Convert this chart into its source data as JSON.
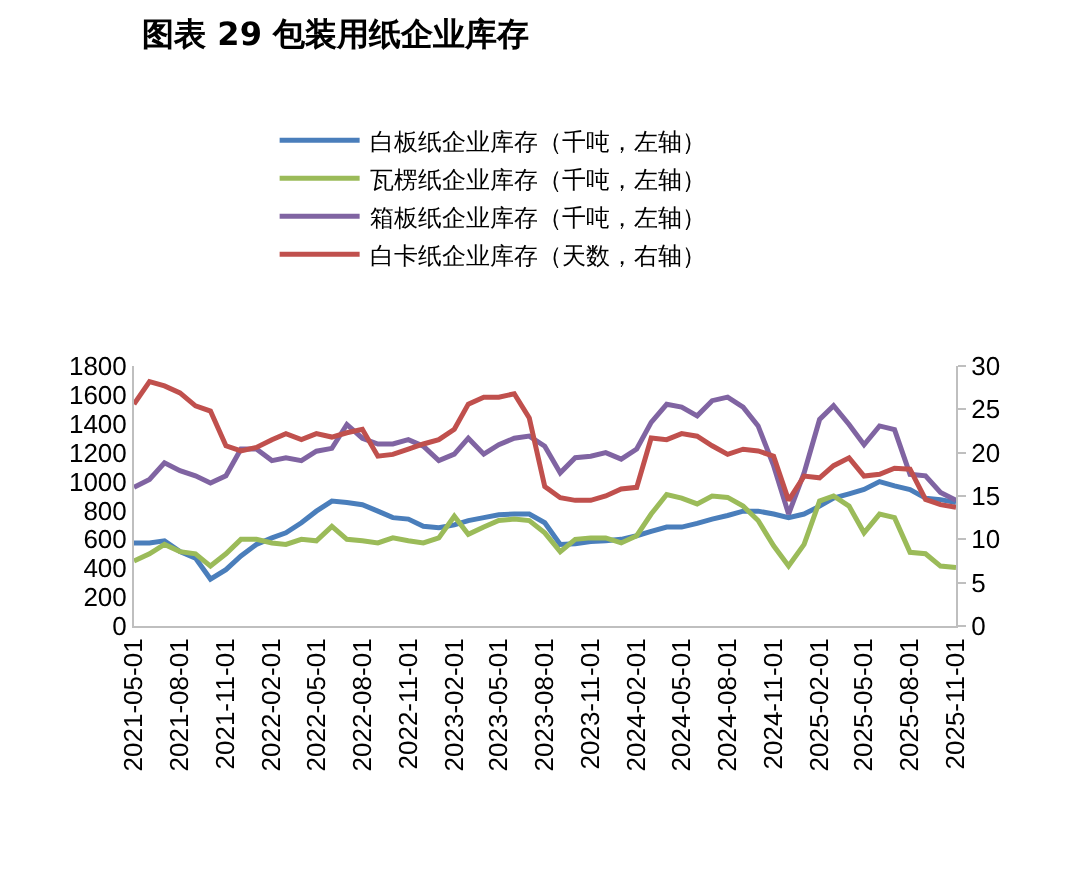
{
  "chart_data": {
    "type": "line",
    "title": "图表 29 包装用纸企业库存",
    "x": [
      "2021-05-01",
      "2021-06-01",
      "2021-07-01",
      "2021-08-01",
      "2021-09-01",
      "2021-10-01",
      "2021-11-01",
      "2021-12-01",
      "2022-01-01",
      "2022-02-01",
      "2022-03-01",
      "2022-04-01",
      "2022-05-01",
      "2022-06-01",
      "2022-07-01",
      "2022-08-01",
      "2022-09-01",
      "2022-10-01",
      "2022-11-01",
      "2022-12-01",
      "2023-01-01",
      "2023-02-01",
      "2023-03-01",
      "2023-04-01",
      "2023-05-01",
      "2023-06-01",
      "2023-07-01",
      "2023-08-01",
      "2023-09-01",
      "2023-10-01",
      "2023-11-01",
      "2023-12-01",
      "2024-01-01",
      "2024-02-01",
      "2024-03-01",
      "2024-04-01",
      "2024-05-01",
      "2024-06-01",
      "2024-07-01",
      "2024-08-01",
      "2024-09-01",
      "2024-10-01",
      "2024-11-01",
      "2024-12-01",
      "2025-01-01",
      "2025-02-01",
      "2025-03-01",
      "2025-04-01",
      "2025-05-01",
      "2025-06-01",
      "2025-07-01",
      "2025-08-01",
      "2025-09-01",
      "2025-10-01",
      "2025-11-01"
    ],
    "series": [
      {
        "name": "白板纸企业库存（千吨，左轴）",
        "color": "#4a7ebb",
        "values": [
          575,
          575,
          590,
          515,
          470,
          325,
          390,
          485,
          565,
          610,
          645,
          715,
          795,
          865,
          855,
          840,
          795,
          750,
          740,
          690,
          680,
          700,
          730,
          750,
          770,
          775,
          775,
          715,
          565,
          570,
          585,
          590,
          600,
          625,
          655,
          685,
          685,
          710,
          740,
          765,
          795,
          795,
          775,
          750,
          775,
          830,
          885,
          915,
          945,
          1000,
          970,
          945,
          885,
          875,
          855
        ]
      },
      {
        "name": "瓦楞纸企业库存（千吨，左轴）",
        "color": "#9bbb59",
        "values": [
          450,
          500,
          565,
          515,
          500,
          415,
          500,
          600,
          600,
          575,
          565,
          600,
          590,
          690,
          600,
          590,
          575,
          610,
          590,
          575,
          610,
          760,
          635,
          685,
          730,
          740,
          730,
          645,
          515,
          600,
          610,
          610,
          575,
          625,
          775,
          910,
          885,
          845,
          900,
          890,
          830,
          730,
          555,
          415,
          565,
          865,
          900,
          830,
          645,
          775,
          750,
          510,
          500,
          415,
          405
        ]
      },
      {
        "name": "箱板纸企业库存（千吨，左轴）",
        "color": "#8064a2",
        "values": [
          960,
          1015,
          1130,
          1075,
          1040,
          990,
          1040,
          1225,
          1225,
          1145,
          1165,
          1145,
          1210,
          1230,
          1395,
          1300,
          1260,
          1260,
          1290,
          1245,
          1145,
          1190,
          1300,
          1190,
          1255,
          1300,
          1315,
          1245,
          1060,
          1165,
          1175,
          1200,
          1155,
          1225,
          1410,
          1535,
          1515,
          1455,
          1560,
          1585,
          1515,
          1385,
          1110,
          775,
          1060,
          1430,
          1525,
          1395,
          1255,
          1385,
          1360,
          1050,
          1040,
          925,
          870
        ]
      },
      {
        "name": "白卡纸企业库存（天数，右轴）",
        "color": "#c0504d",
        "axis": "y2",
        "values": [
          25.6,
          28.2,
          27.7,
          26.9,
          25.4,
          24.8,
          20.8,
          20.2,
          20.6,
          21.5,
          22.2,
          21.5,
          22.2,
          21.8,
          22.3,
          22.7,
          19.6,
          19.8,
          20.4,
          21,
          21.5,
          22.7,
          25.6,
          26.4,
          26.4,
          26.8,
          24,
          16.1,
          14.8,
          14.5,
          14.5,
          15,
          15.8,
          16,
          21.7,
          21.5,
          22.2,
          21.9,
          20.8,
          19.8,
          20.4,
          20.2,
          19.6,
          14.5,
          17.3,
          17.1,
          18.5,
          19.4,
          17.3,
          17.5,
          18.2,
          18.1,
          14.6,
          14,
          13.7
        ]
      }
    ],
    "xlim": [
      "2021-05-01",
      "2025-11-01"
    ],
    "xticks": [
      "2021-05-01",
      "2021-08-01",
      "2021-11-01",
      "2022-02-01",
      "2022-05-01",
      "2022-08-01",
      "2022-11-01",
      "2023-02-01",
      "2023-05-01",
      "2023-08-01",
      "2023-11-01",
      "2024-02-01",
      "2024-05-01",
      "2024-08-01",
      "2024-11-01",
      "2025-02-01",
      "2025-05-01",
      "2025-08-01",
      "2025-11-01"
    ],
    "ylim": [
      0,
      1800
    ],
    "yticks": [
      0,
      200,
      400,
      600,
      800,
      1000,
      1200,
      1400,
      1600,
      1800
    ],
    "y2lim": [
      0,
      30
    ],
    "y2ticks": [
      0,
      5,
      10,
      15,
      20,
      25,
      30
    ],
    "grid": false,
    "legend": "top",
    "marker": "none",
    "line_style": "solid"
  }
}
